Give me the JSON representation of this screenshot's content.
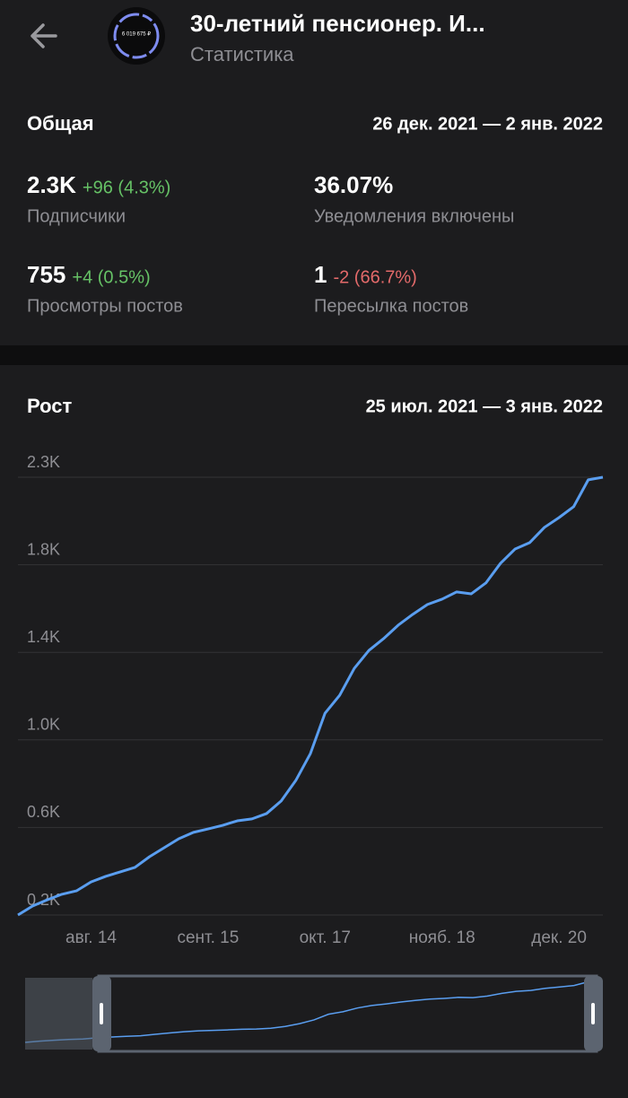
{
  "header": {
    "title": "30-летний пенсионер. И...",
    "subtitle": "Статистика",
    "avatar_text": "6 019 675 ₽"
  },
  "overview": {
    "title": "Общая",
    "period": "26 дек. 2021 — 2 янв. 2022",
    "stats": [
      {
        "value": "2.3K",
        "change": "+96 (4.3%)",
        "trend": "up",
        "label": "Подписчики"
      },
      {
        "value": "36.07%",
        "label": "Уведомления включены"
      },
      {
        "value": "755",
        "change": "+4 (0.5%)",
        "trend": "up",
        "label": "Просмотры постов"
      },
      {
        "value": "1",
        "change": "-2 (66.7%)",
        "trend": "down",
        "label": "Пересылка постов"
      }
    ]
  },
  "chart_data": {
    "type": "line",
    "title": "Рост",
    "period": "25 июл. 2021 — 3 янв. 2022",
    "categories": [
      null,
      null,
      null,
      null,
      null,
      "авг. 14",
      null,
      null,
      null,
      null,
      null,
      null,
      null,
      "сент. 15",
      null,
      null,
      null,
      null,
      null,
      null,
      null,
      "окт. 17",
      null,
      null,
      null,
      null,
      null,
      null,
      null,
      "нояб. 18",
      null,
      null,
      null,
      null,
      null,
      null,
      null,
      "дек. 20",
      null,
      null,
      null
    ],
    "values": [
      200,
      242,
      271,
      297,
      313,
      355,
      381,
      402,
      423,
      473,
      515,
      557,
      587,
      603,
      620,
      641,
      650,
      675,
      734,
      830,
      956,
      1145,
      1229,
      1355,
      1439,
      1494,
      1557,
      1608,
      1654,
      1679,
      1713,
      1704,
      1755,
      1847,
      1914,
      1944,
      2015,
      2061,
      2112,
      2238,
      2250
    ],
    "color": "#5a9ef0",
    "ylim": [
      200,
      2250
    ],
    "yticks": [
      {
        "value": 200,
        "label": "0.2K"
      },
      {
        "value": 610,
        "label": "0.6K"
      },
      {
        "value": 1020,
        "label": "1.0K"
      },
      {
        "value": 1430,
        "label": "1.4K"
      },
      {
        "value": 1840,
        "label": "1.8K"
      },
      {
        "value": 2250,
        "label": "2.3K"
      }
    ],
    "grid": true
  }
}
